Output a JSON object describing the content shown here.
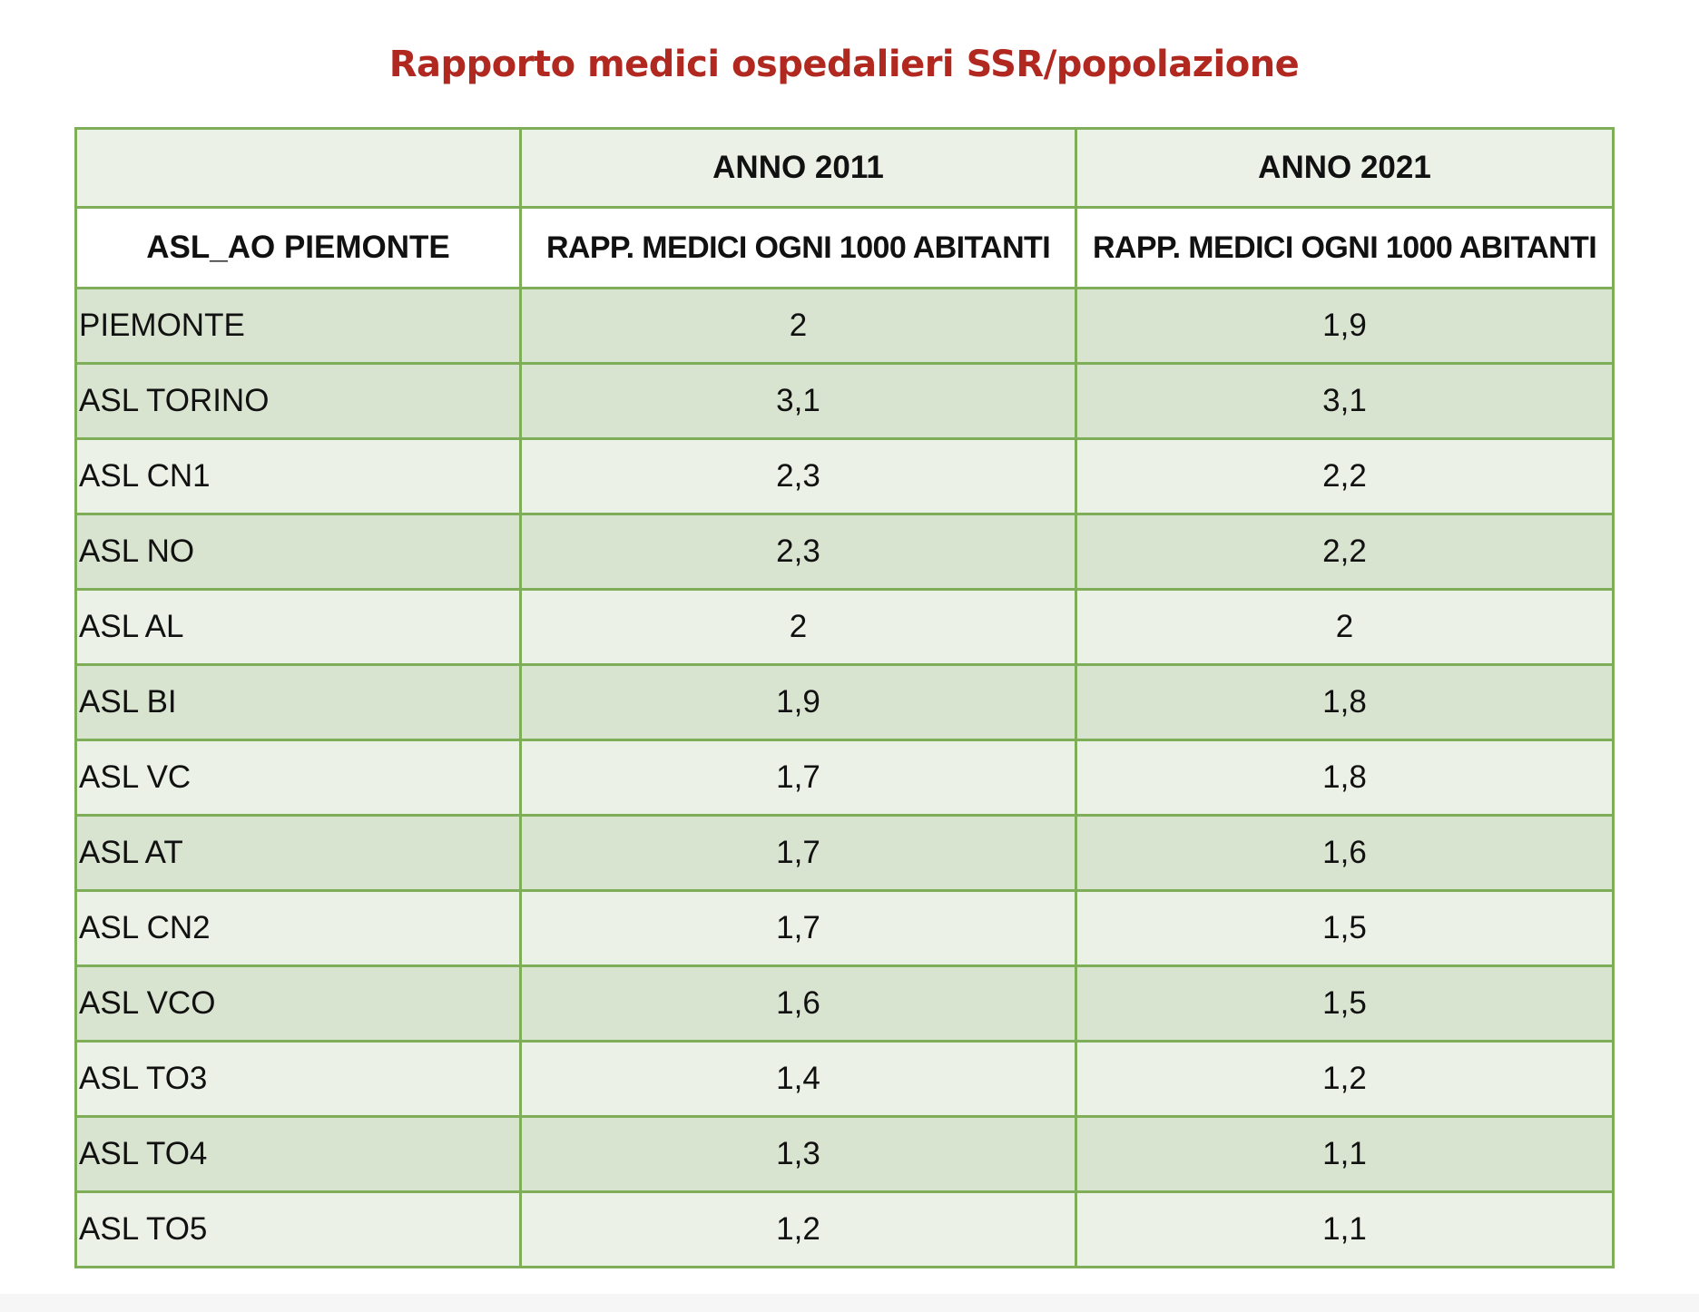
{
  "title": "Rapporto medici ospedalieri SSR/popolazione",
  "header": {
    "top_left": "",
    "year_2011": "ANNO 2011",
    "year_2021": "ANNO 2021",
    "col_region": "ASL_AO PIEMONTE",
    "col_metric_2011": "RAPP. MEDICI OGNI 1000 ABITANTI",
    "col_metric_2021": "RAPP. MEDICI OGNI 1000 ABITANTI"
  },
  "rows": [
    {
      "name": "PIEMONTE",
      "v2011": "2",
      "v2021": "1,9"
    },
    {
      "name": "ASL TORINO",
      "v2011": "3,1",
      "v2021": "3,1"
    },
    {
      "name": "ASL CN1",
      "v2011": "2,3",
      "v2021": "2,2"
    },
    {
      "name": "ASL NO",
      "v2011": "2,3",
      "v2021": "2,2"
    },
    {
      "name": "ASL AL",
      "v2011": "2",
      "v2021": "2"
    },
    {
      "name": "ASL BI",
      "v2011": "1,9",
      "v2021": "1,8"
    },
    {
      "name": "ASL VC",
      "v2011": "1,7",
      "v2021": "1,8"
    },
    {
      "name": "ASL AT",
      "v2011": "1,7",
      "v2021": "1,6"
    },
    {
      "name": "ASL CN2",
      "v2011": "1,7",
      "v2021": "1,5"
    },
    {
      "name": "ASL VCO",
      "v2011": "1,6",
      "v2021": "1,5"
    },
    {
      "name": "ASL TO3",
      "v2011": "1,4",
      "v2021": "1,2"
    },
    {
      "name": "ASL TO4",
      "v2011": "1,3",
      "v2021": "1,1"
    },
    {
      "name": "ASL TO5",
      "v2011": "1,2",
      "v2021": "1,1"
    }
  ],
  "colors": {
    "title": "#b0281f",
    "border": "#7fae58",
    "row_shade": "#d9e4d0",
    "row_plain": "#ebf1e6"
  }
}
